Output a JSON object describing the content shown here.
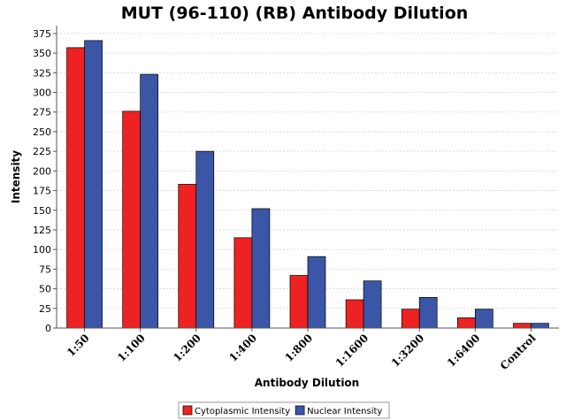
{
  "chart_data": {
    "type": "bar",
    "title": "MUT (96-110) (RB) Antibody Dilution",
    "xlabel": "Antibody Dilution",
    "ylabel": "Intensity",
    "categories": [
      "1:50",
      "1:100",
      "1:200",
      "1:400",
      "1:800",
      "1:1600",
      "1:3200",
      "1:6400",
      "Control"
    ],
    "series": [
      {
        "name": "Cytoplasmic Intensity",
        "color": "#ee2222",
        "values": [
          357,
          276,
          183,
          115,
          67,
          36,
          24,
          13,
          6
        ]
      },
      {
        "name": "Nuclear Intensity",
        "color": "#3b56a6",
        "values": [
          366,
          323,
          225,
          152,
          91,
          60,
          39,
          24,
          6
        ]
      }
    ],
    "ylim": [
      0,
      385
    ],
    "yticks": [
      0,
      25,
      50,
      75,
      100,
      125,
      150,
      175,
      200,
      225,
      250,
      275,
      300,
      325,
      350,
      375
    ],
    "grid": true,
    "legend_position": "bottom-center"
  }
}
